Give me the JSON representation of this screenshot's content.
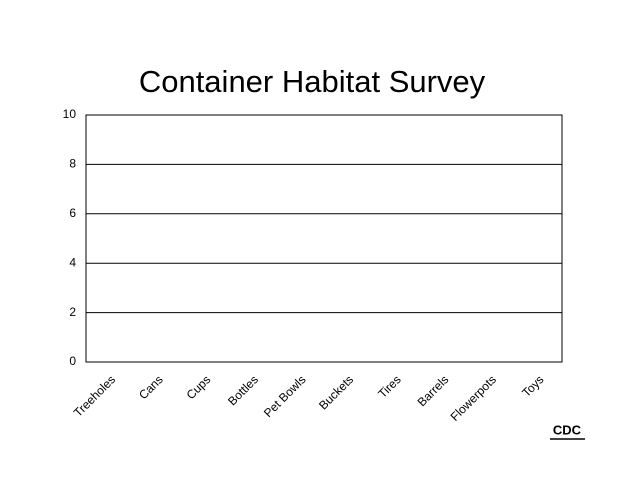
{
  "chart_data": {
    "type": "bar",
    "title": "Container Habitat Survey",
    "categories": [
      "Treeholes",
      "Cans",
      "Cups",
      "Bottles",
      "Pet Bowls",
      "Buckets",
      "Tires",
      "Barrels",
      "Flowerpots",
      "Toys"
    ],
    "ylim": [
      0,
      10
    ],
    "yticks": [
      0,
      2,
      4,
      6,
      8,
      10
    ],
    "grid": true
  },
  "logo": "CDC"
}
